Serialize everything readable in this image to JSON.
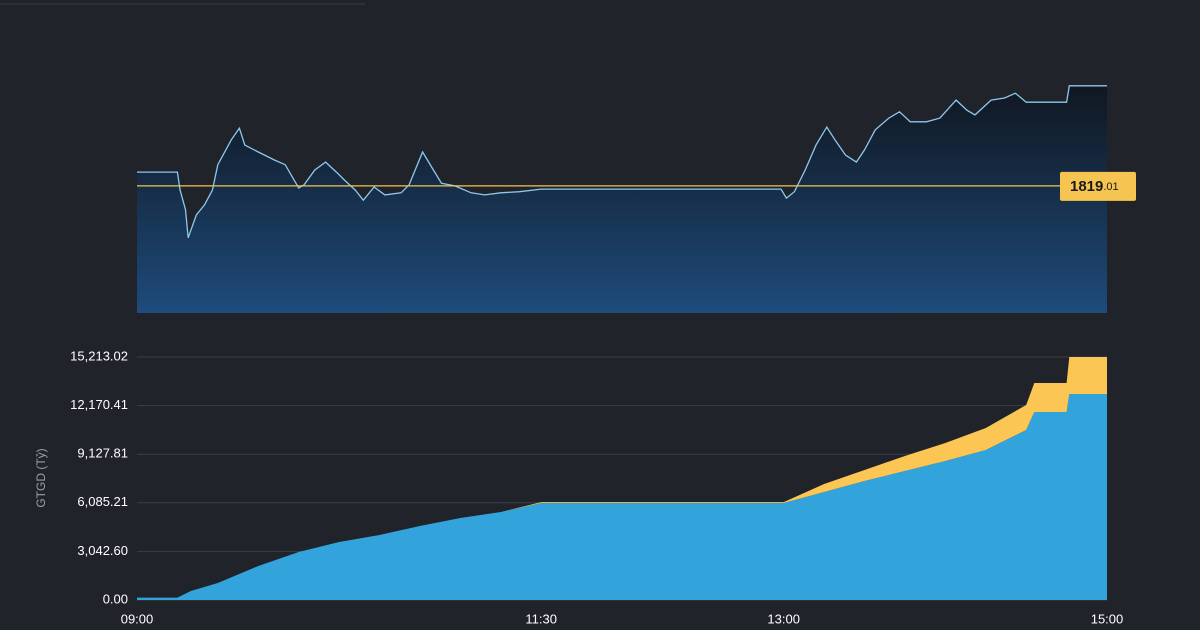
{
  "chart_data": [
    {
      "type": "line",
      "color": "#8cc8f0",
      "fill": "#1d4a78",
      "x": [
        "09:00",
        "09:15",
        "09:16",
        "09:18",
        "09:19",
        "09:22",
        "09:25",
        "09:28",
        "09:30",
        "09:35",
        "09:38",
        "09:40",
        "09:45",
        "09:51",
        "09:55",
        "10:00",
        "10:02",
        "10:06",
        "10:10",
        "10:14",
        "10:17",
        "10:21",
        "10:24",
        "10:28",
        "10:32",
        "10:38",
        "10:41",
        "10:46",
        "10:50",
        "10:53",
        "10:58",
        "11:04",
        "11:09",
        "11:15",
        "11:22",
        "11:30",
        "12:59",
        "13:01",
        "13:04",
        "13:08",
        "13:12",
        "13:16",
        "13:19",
        "13:23",
        "13:27",
        "13:30",
        "13:34",
        "13:39",
        "13:43",
        "13:47",
        "13:53",
        "13:58",
        "14:04",
        "14:08",
        "14:11",
        "14:17",
        "14:22",
        "14:26",
        "14:30",
        "14:45",
        "14:46",
        "15:00"
      ],
      "values": [
        1821.6,
        1821.6,
        1818.2,
        1814.5,
        1809.2,
        1813.5,
        1815.4,
        1818.2,
        1823.0,
        1827.7,
        1829.9,
        1826.7,
        1825.4,
        1823.9,
        1823.0,
        1818.6,
        1819.2,
        1822.0,
        1823.5,
        1821.6,
        1820.1,
        1818.2,
        1816.3,
        1818.8,
        1817.3,
        1817.7,
        1819.2,
        1825.4,
        1822.0,
        1819.5,
        1819.0,
        1817.7,
        1817.3,
        1817.7,
        1817.9,
        1818.4,
        1818.4,
        1816.7,
        1817.9,
        1822.0,
        1826.7,
        1830.1,
        1827.7,
        1824.8,
        1823.5,
        1825.8,
        1829.6,
        1831.8,
        1833.0,
        1831.1,
        1831.1,
        1831.8,
        1835.2,
        1833.3,
        1832.4,
        1835.2,
        1835.6,
        1836.5,
        1834.8,
        1834.8,
        1837.9,
        1837.9
      ],
      "xlim": [
        "09:00",
        "15:00"
      ],
      "ylim": [
        1795,
        1839
      ],
      "reference_line": {
        "value": 1819.01,
        "label_parts": [
          "1819",
          ".01"
        ],
        "color": "#f5c451"
      }
    },
    {
      "type": "area",
      "stacked": true,
      "ylabel": "GTGD (Tỷ)",
      "grid": true,
      "x": [
        "09:00",
        "09:15",
        "09:20",
        "09:30",
        "09:45",
        "10:00",
        "10:15",
        "10:30",
        "10:45",
        "11:00",
        "11:15",
        "11:30",
        "13:00",
        "13:15",
        "13:30",
        "13:45",
        "14:00",
        "14:15",
        "14:30",
        "14:33",
        "14:45",
        "14:46",
        "15:00"
      ],
      "series": [
        {
          "color": "#33a3dc",
          "values": [
            150,
            150,
            563,
            1064,
            2128,
            3005,
            3631,
            4069,
            4632,
            5133,
            5509,
            6072,
            6072,
            6761,
            7449,
            8075,
            8701,
            9390,
            10642,
            11769,
            11769,
            12896,
            12896
          ]
        },
        {
          "color": "#fbc654",
          "values": [
            0,
            0,
            0,
            0,
            0,
            0,
            0,
            0,
            0,
            0,
            0,
            60,
            60,
            501,
            689,
            939,
            1127,
            1377,
            1565,
            1815,
            1815,
            2316,
            2316
          ]
        }
      ],
      "xlim": [
        "09:00",
        "15:00"
      ],
      "ylim": [
        0,
        15213.02
      ],
      "xticks": [
        "09:00",
        "11:30",
        "13:00",
        "15:00"
      ],
      "yticks": [
        {
          "value": 0,
          "label": "0.00"
        },
        {
          "value": 3042.6,
          "label": "3,042.60"
        },
        {
          "value": 6085.21,
          "label": "6,085.21"
        },
        {
          "value": 9127.81,
          "label": "9,127.81"
        },
        {
          "value": 12170.41,
          "label": "12,170.41"
        },
        {
          "value": 15213.02,
          "label": "15,213.02"
        }
      ]
    }
  ]
}
